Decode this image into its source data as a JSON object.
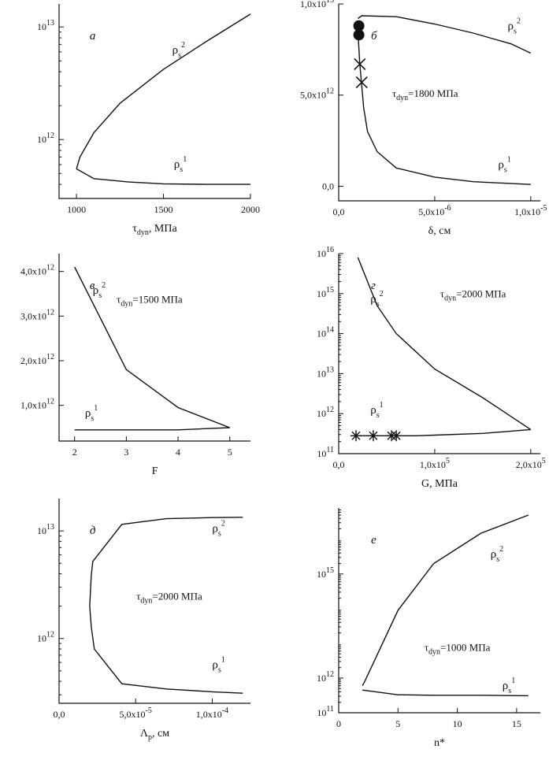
{
  "chart_data": [
    {
      "id": "a",
      "panel_label": "a",
      "type": "line",
      "xlabel": "τ",
      "xlabel_sub": "dyn",
      "xlabel_unit": ", МПа",
      "xscale": "linear",
      "yscale": "log",
      "xlim": [
        900,
        2000
      ],
      "ylim": [
        300000000000,
        16000000000000
      ],
      "xticks": [
        1000,
        1500,
        2000
      ],
      "xtick_labels": [
        "1000",
        "1500",
        "2000"
      ],
      "yticks": [
        1000000000000,
        10000000000000
      ],
      "ytick_labels": [
        "10^12",
        "10^13"
      ],
      "annotation": null,
      "series": [
        {
          "name": "ρ_s^2",
          "x": [
            1000,
            1020,
            1100,
            1250,
            1500,
            1750,
            2000
          ],
          "y": [
            550000000000,
            700000000000,
            1150000000000,
            2100000000000,
            4200000000000,
            7500000000000,
            13000000000000
          ]
        },
        {
          "name": "ρ_s^1",
          "x": [
            1000,
            1100,
            1300,
            1500,
            1750,
            2000
          ],
          "y": [
            550000000000,
            450000000000,
            420000000000,
            405000000000,
            400000000000,
            400000000000
          ]
        }
      ],
      "labels": [
        {
          "text": "ρ",
          "sub": "s",
          "sup": "2",
          "x": 1550,
          "y": 5800000000000
        },
        {
          "text": "ρ",
          "sub": "s",
          "sup": "1",
          "x": 1560,
          "y": 560000000000
        }
      ],
      "markers": []
    },
    {
      "id": "b",
      "panel_label": "б",
      "type": "line",
      "xlabel": "δ",
      "xlabel_sub": "",
      "xlabel_unit": ", см",
      "xscale": "linear",
      "yscale": "linear",
      "xlim": [
        0,
        1.05e-05
      ],
      "ylim": [
        -800000000000,
        10000000000000
      ],
      "xticks": [
        0,
        5e-06,
        1e-05
      ],
      "xtick_labels": [
        "0,0",
        "5,0x10^-6",
        "1,0x10^-5"
      ],
      "yticks": [
        0,
        5000000000000,
        10000000000000
      ],
      "ytick_labels": [
        "0,0",
        "5,0x10^12",
        "1,0x10^13"
      ],
      "annotation": {
        "text": "τ",
        "sub": "dyn",
        "rest": "=1800 МПа",
        "x": 4.5e-06,
        "y": 4900000000000
      },
      "series": [
        {
          "name": "ρ_s^2",
          "x": [
            1e-06,
            1.2e-06,
            3e-06,
            5e-06,
            7e-06,
            9e-06,
            1e-05
          ],
          "y": [
            9200000000000,
            9350000000000,
            9300000000000,
            8900000000000,
            8400000000000,
            7800000000000,
            7300000000000
          ]
        },
        {
          "name": "ρ_s^1",
          "x": [
            1e-06,
            1.1e-06,
            1.2e-06,
            1.3e-06,
            1.5e-06,
            2e-06,
            3e-06,
            5e-06,
            7e-06,
            1e-05
          ],
          "y": [
            8500000000000,
            6700000000000,
            5500000000000,
            4300000000000,
            3000000000000,
            1900000000000,
            1000000000000,
            500000000000,
            250000000000,
            100000000000
          ]
        }
      ],
      "labels": [
        {
          "text": "ρ",
          "sub": "s",
          "sup": "2",
          "x": 8.8e-06,
          "y": 8600000000000
        },
        {
          "text": "ρ",
          "sub": "s",
          "sup": "1",
          "x": 8.3e-06,
          "y": 1000000000000
        }
      ],
      "markers": [
        {
          "shape": "circle",
          "x": 1.05e-06,
          "y": 8800000000000
        },
        {
          "shape": "circle",
          "x": 1.05e-06,
          "y": 8300000000000
        },
        {
          "shape": "x",
          "x": 1.1e-06,
          "y": 6700000000000
        },
        {
          "shape": "x",
          "x": 1.2e-06,
          "y": 5700000000000
        }
      ]
    },
    {
      "id": "c",
      "panel_label": "в",
      "type": "line",
      "xlabel": "F",
      "xlabel_sub": "",
      "xlabel_unit": "",
      "xscale": "linear",
      "yscale": "linear",
      "xlim": [
        1.7,
        5.4
      ],
      "ylim": [
        200000000000,
        4400000000000
      ],
      "xticks": [
        2,
        3,
        4,
        5
      ],
      "xtick_labels": [
        "2",
        "3",
        "4",
        "5"
      ],
      "yticks": [
        1000000000000,
        2000000000000,
        3000000000000,
        4000000000000
      ],
      "ytick_labels": [
        "1,0x10^12",
        "2,0x10^12",
        "3,0x10^12",
        "4,0x10^12"
      ],
      "annotation": {
        "text": "τ",
        "sub": "dyn",
        "rest": "=1500 МПа",
        "x": 3.45,
        "y": 3300000000000
      },
      "series": [
        {
          "name": "ρ_s^2",
          "x": [
            2,
            3,
            4,
            5
          ],
          "y": [
            4100000000000,
            1800000000000,
            950000000000,
            500000000000
          ]
        },
        {
          "name": "ρ_s^1",
          "x": [
            2,
            3,
            4,
            5
          ],
          "y": [
            450000000000,
            450000000000,
            450000000000,
            500000000000
          ]
        }
      ],
      "labels": [
        {
          "text": "ρ",
          "sub": "s",
          "sup": "2",
          "x": 2.35,
          "y": 3500000000000
        },
        {
          "text": "ρ",
          "sub": "s",
          "sup": "1",
          "x": 2.2,
          "y": 750000000000
        }
      ],
      "markers": []
    },
    {
      "id": "d",
      "panel_label": "г",
      "type": "line",
      "xlabel": "G",
      "xlabel_sub": "",
      "xlabel_unit": ", МПа",
      "xscale": "linear",
      "yscale": "log",
      "xlim": [
        0,
        210000
      ],
      "ylim": [
        100000000000,
        10000000000000000
      ],
      "xticks": [
        0,
        100000,
        200000
      ],
      "xtick_labels": [
        "0,0",
        "1,0x10^5",
        "2,0x10^5"
      ],
      "yticks": [
        100000000000,
        1000000000000,
        10000000000000,
        100000000000000,
        1000000000000000,
        10000000000000000
      ],
      "ytick_labels": [
        "10^11",
        "10^12",
        "10^13",
        "10^14",
        "10^15",
        "10^16"
      ],
      "annotation": {
        "text": "τ",
        "sub": "dyn",
        "rest": "=2000 МПа",
        "x": 140000,
        "y": 800000000000000
      },
      "series": [
        {
          "name": "ρ_s^2",
          "x": [
            20000,
            40000,
            60000,
            100000,
            150000,
            200000
          ],
          "y": [
            8000000000000000,
            500000000000000,
            100000000000000,
            13000000000000,
            2500000000000,
            400000000000
          ]
        },
        {
          "name": "ρ_s^1",
          "x": [
            20000,
            40000,
            60000,
            80000,
            100000,
            150000,
            200000
          ],
          "y": [
            280000000000,
            280000000000,
            280000000000,
            280000000000,
            290000000000,
            320000000000,
            400000000000
          ]
        }
      ],
      "labels": [
        {
          "text": "ρ",
          "sub": "s",
          "sup": "2",
          "x": 33000,
          "y": 600000000000000
        },
        {
          "text": "ρ",
          "sub": "s",
          "sup": "1",
          "x": 33000,
          "y": 1000000000000
        }
      ],
      "markers": [
        {
          "shape": "star",
          "x": 18000,
          "y": 280000000000
        },
        {
          "shape": "star",
          "x": 36000,
          "y": 280000000000
        },
        {
          "shape": "star",
          "x": 55000,
          "y": 280000000000
        },
        {
          "shape": "star",
          "x": 60000,
          "y": 280000000000
        }
      ]
    },
    {
      "id": "e",
      "panel_label": "д",
      "type": "line",
      "xlabel": "Λ",
      "xlabel_sub": "p",
      "xlabel_unit": ", см",
      "xscale": "linear",
      "yscale": "log",
      "xlim": [
        0,
        0.000125
      ],
      "ylim": [
        250000000000,
        20000000000000
      ],
      "xticks": [
        0,
        5e-05,
        0.0001
      ],
      "xtick_labels": [
        "0,0",
        "5,0x10^-5",
        "1,0x10^-4"
      ],
      "yticks": [
        1000000000000,
        10000000000000
      ],
      "ytick_labels": [
        "10^12",
        "10^13"
      ],
      "annotation": {
        "text": "τ",
        "sub": "dyn",
        "rest": "=2000 МПа",
        "x": 7.2e-05,
        "y": 2300000000000
      },
      "series": [
        {
          "name": "ρ_s^2",
          "x": [
            2e-05,
            2.1e-05,
            2.2e-05,
            4.1e-05,
            7e-05,
            0.0001,
            0.00012
          ],
          "y": [
            2000000000000,
            3800000000000,
            5200000000000,
            11500000000000,
            13000000000000,
            13300000000000,
            13400000000000
          ]
        },
        {
          "name": "ρ_s^1",
          "x": [
            2e-05,
            2.1e-05,
            2.3e-05,
            4.1e-05,
            7e-05,
            0.0001,
            0.00012
          ],
          "y": [
            2000000000000,
            1300000000000,
            800000000000,
            380000000000,
            340000000000,
            320000000000,
            310000000000
          ]
        }
      ],
      "labels": [
        {
          "text": "ρ",
          "sub": "s",
          "sup": "2",
          "x": 0.0001,
          "y": 9800000000000
        },
        {
          "text": "ρ",
          "sub": "s",
          "sup": "1",
          "x": 0.0001,
          "y": 530000000000
        }
      ],
      "markers": []
    },
    {
      "id": "f",
      "panel_label": "е",
      "type": "line",
      "xlabel": "n*",
      "xlabel_sub": "",
      "xlabel_unit": "",
      "xscale": "linear",
      "yscale": "log",
      "xlim": [
        0,
        17
      ],
      "ylim": [
        100000000000,
        80000000000000000
      ],
      "xticks": [
        0,
        5,
        10,
        15
      ],
      "xtick_labels": [
        "0",
        "5",
        "10",
        "15"
      ],
      "yticks": [
        100000000000,
        1000000000000,
        1000000000000000
      ],
      "ytick_labels": [
        "10^11",
        "10^12",
        "10^15"
      ],
      "annotation": {
        "text": "τ",
        "sub": "dyn",
        "rest": "=1000 МПа",
        "x": 10,
        "y": 6000000000000
      },
      "series": [
        {
          "name": "ρ_s^2",
          "x": [
            2,
            2.2,
            5,
            8,
            12,
            16
          ],
          "y": [
            600000000000,
            800000000000,
            90000000000000,
            2000000000000000,
            15000000000000000,
            50000000000000000
          ]
        },
        {
          "name": "ρ_s^1",
          "x": [
            2,
            5,
            8,
            12,
            16
          ],
          "y": [
            450000000000,
            330000000000,
            320000000000,
            320000000000,
            310000000000
          ]
        }
      ],
      "labels": [
        {
          "text": "ρ",
          "sub": "s",
          "sup": "2",
          "x": 12.8,
          "y": 3000000000000000
        },
        {
          "text": "ρ",
          "sub": "s",
          "sup": "1",
          "x": 13.8,
          "y": 480000000000
        }
      ],
      "markers": []
    }
  ]
}
